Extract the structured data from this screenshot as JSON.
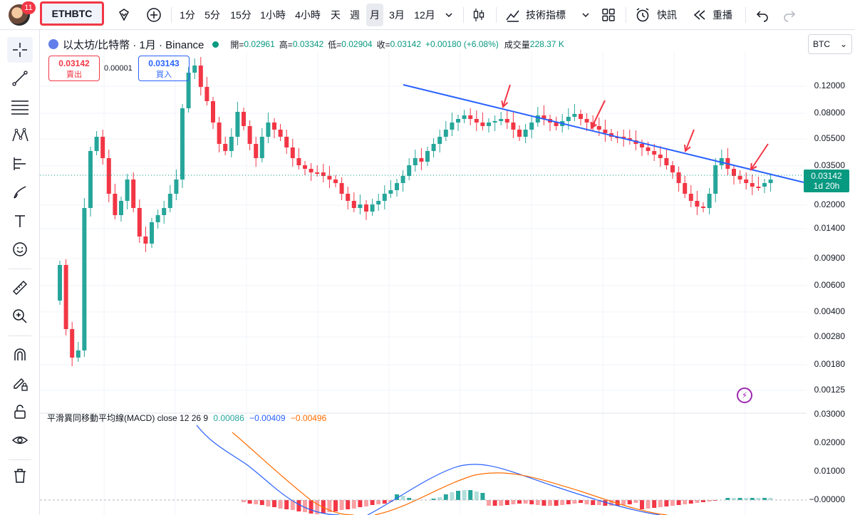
{
  "toolbar": {
    "notification_count": "11",
    "symbol": "ETHBTC",
    "timeframes": [
      "1分",
      "5分",
      "15分",
      "1小時",
      "4小時",
      "天",
      "週",
      "月",
      "3月",
      "12月"
    ],
    "active_timeframe": "月",
    "indicators_label": "技術指標",
    "alert_label": "快訊",
    "replay_label": "重播"
  },
  "legend": {
    "title": "以太坊/比特幣 · 1月 · Binance",
    "open_label": "開=",
    "open": "0.02961",
    "high_label": "高=",
    "high": "0.03342",
    "low_label": "低=",
    "low": "0.02904",
    "close_label": "收=",
    "close": "0.03142",
    "change": "+0.00180 (+6.08%)",
    "volume_label": "成交量",
    "volume": "228.37 K"
  },
  "trade": {
    "sell_price": "0.03142",
    "sell_label": "賣出",
    "spread": "0.00001",
    "buy_price": "0.03143",
    "buy_label": "買入"
  },
  "currency": "BTC",
  "price_axis": [
    "0.12000",
    "0.08000",
    "0.05500",
    "0.03500",
    "0.02000",
    "0.01400",
    "0.00900",
    "0.00600",
    "0.00400",
    "0.00280",
    "0.00180",
    "0.00125"
  ],
  "last_price": {
    "value": "0.03142",
    "countdown": "1d 20h"
  },
  "macd": {
    "name": "平滑異同移動平均線(MACD)",
    "params": "close 12 26 9",
    "histogram": "0.00086",
    "macd": "−0.00409",
    "signal": "−0.00496",
    "axis": [
      "0.03000",
      "0.02000",
      "0.01000",
      "−0.00000"
    ]
  },
  "colors": {
    "up": "#26a69a",
    "down": "#f23645",
    "trendline": "#2962ff",
    "arrows": "#f23645",
    "macd_line": "#2962ff",
    "signal_line": "#ff6d00"
  }
}
